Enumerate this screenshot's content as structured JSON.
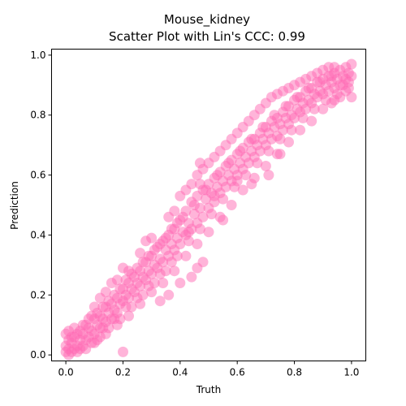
{
  "chart_data": {
    "type": "scatter",
    "title_line1": "Mouse_kidney",
    "title_line2": "Scatter Plot with Lin's CCC: 0.99",
    "xlabel": "Truth",
    "ylabel": "Prediction",
    "xlim": [
      -0.05,
      1.05
    ],
    "ylim": [
      -0.02,
      1.02
    ],
    "x_ticks": [
      0.0,
      0.2,
      0.4,
      0.6,
      0.8,
      1.0
    ],
    "x_tick_labels": [
      "0.0",
      "0.2",
      "0.4",
      "0.6",
      "0.8",
      "1.0"
    ],
    "y_ticks": [
      0.0,
      0.2,
      0.4,
      0.6,
      0.8,
      1.0
    ],
    "y_tick_labels": [
      "0.0",
      "0.2",
      "0.4",
      "0.6",
      "0.8",
      "1.0"
    ],
    "grid": false,
    "marker_color": "#FF69B4",
    "marker_alpha": 0.5,
    "series": [
      {
        "points": [
          [
            0.0,
            0.01
          ],
          [
            0.0,
            0.03
          ],
          [
            0.0,
            0.07
          ],
          [
            0.01,
            0.0
          ],
          [
            0.01,
            0.02
          ],
          [
            0.01,
            0.05
          ],
          [
            0.02,
            0.01
          ],
          [
            0.02,
            0.04
          ],
          [
            0.03,
            0.02
          ],
          [
            0.03,
            0.06
          ],
          [
            0.04,
            0.03
          ],
          [
            0.04,
            0.01
          ],
          [
            0.05,
            0.05
          ],
          [
            0.05,
            0.08
          ],
          [
            0.06,
            0.03
          ],
          [
            0.06,
            0.07
          ],
          [
            0.07,
            0.05
          ],
          [
            0.07,
            0.1
          ],
          [
            0.08,
            0.06
          ],
          [
            0.08,
            0.09
          ],
          [
            0.09,
            0.08
          ],
          [
            0.1,
            0.07
          ],
          [
            0.1,
            0.12
          ],
          [
            0.11,
            0.1
          ],
          [
            0.12,
            0.09
          ],
          [
            0.12,
            0.13
          ],
          [
            0.13,
            0.12
          ],
          [
            0.14,
            0.11
          ],
          [
            0.14,
            0.16
          ],
          [
            0.15,
            0.14
          ],
          [
            0.16,
            0.12
          ],
          [
            0.16,
            0.17
          ],
          [
            0.17,
            0.15
          ],
          [
            0.18,
            0.14
          ],
          [
            0.18,
            0.19
          ],
          [
            0.19,
            0.17
          ],
          [
            0.2,
            0.18
          ],
          [
            0.2,
            0.22
          ],
          [
            0.21,
            0.2
          ],
          [
            0.22,
            0.19
          ],
          [
            0.22,
            0.24
          ],
          [
            0.23,
            0.22
          ],
          [
            0.24,
            0.21
          ],
          [
            0.24,
            0.26
          ],
          [
            0.25,
            0.24
          ],
          [
            0.26,
            0.23
          ],
          [
            0.26,
            0.28
          ],
          [
            0.27,
            0.26
          ],
          [
            0.28,
            0.25
          ],
          [
            0.28,
            0.31
          ],
          [
            0.29,
            0.28
          ],
          [
            0.3,
            0.27
          ],
          [
            0.3,
            0.33
          ],
          [
            0.31,
            0.3
          ],
          [
            0.32,
            0.29
          ],
          [
            0.32,
            0.36
          ],
          [
            0.33,
            0.32
          ],
          [
            0.34,
            0.31
          ],
          [
            0.34,
            0.38
          ],
          [
            0.35,
            0.35
          ],
          [
            0.36,
            0.33
          ],
          [
            0.36,
            0.4
          ],
          [
            0.37,
            0.37
          ],
          [
            0.38,
            0.35
          ],
          [
            0.38,
            0.42
          ],
          [
            0.39,
            0.39
          ],
          [
            0.4,
            0.37
          ],
          [
            0.4,
            0.45
          ],
          [
            0.41,
            0.41
          ],
          [
            0.42,
            0.4
          ],
          [
            0.42,
            0.48
          ],
          [
            0.43,
            0.44
          ],
          [
            0.44,
            0.42
          ],
          [
            0.44,
            0.51
          ],
          [
            0.45,
            0.47
          ],
          [
            0.46,
            0.44
          ],
          [
            0.46,
            0.53
          ],
          [
            0.47,
            0.49
          ],
          [
            0.48,
            0.46
          ],
          [
            0.48,
            0.55
          ],
          [
            0.49,
            0.52
          ],
          [
            0.5,
            0.49
          ],
          [
            0.5,
            0.57
          ],
          [
            0.51,
            0.54
          ],
          [
            0.52,
            0.51
          ],
          [
            0.52,
            0.59
          ],
          [
            0.53,
            0.56
          ],
          [
            0.54,
            0.54
          ],
          [
            0.54,
            0.61
          ],
          [
            0.55,
            0.58
          ],
          [
            0.56,
            0.56
          ],
          [
            0.56,
            0.63
          ],
          [
            0.57,
            0.6
          ],
          [
            0.58,
            0.58
          ],
          [
            0.58,
            0.65
          ],
          [
            0.59,
            0.62
          ],
          [
            0.6,
            0.6
          ],
          [
            0.6,
            0.67
          ],
          [
            0.61,
            0.64
          ],
          [
            0.62,
            0.62
          ],
          [
            0.62,
            0.69
          ],
          [
            0.63,
            0.66
          ],
          [
            0.64,
            0.64
          ],
          [
            0.64,
            0.71
          ],
          [
            0.65,
            0.68
          ],
          [
            0.66,
            0.66
          ],
          [
            0.66,
            0.72
          ],
          [
            0.67,
            0.7
          ],
          [
            0.68,
            0.68
          ],
          [
            0.68,
            0.74
          ],
          [
            0.69,
            0.72
          ],
          [
            0.7,
            0.7
          ],
          [
            0.7,
            0.76
          ],
          [
            0.71,
            0.74
          ],
          [
            0.72,
            0.72
          ],
          [
            0.72,
            0.78
          ],
          [
            0.73,
            0.76
          ],
          [
            0.74,
            0.73
          ],
          [
            0.74,
            0.79
          ],
          [
            0.75,
            0.77
          ],
          [
            0.76,
            0.75
          ],
          [
            0.76,
            0.81
          ],
          [
            0.77,
            0.79
          ],
          [
            0.78,
            0.77
          ],
          [
            0.78,
            0.83
          ],
          [
            0.79,
            0.8
          ],
          [
            0.8,
            0.79
          ],
          [
            0.8,
            0.85
          ],
          [
            0.81,
            0.82
          ],
          [
            0.82,
            0.81
          ],
          [
            0.82,
            0.86
          ],
          [
            0.83,
            0.84
          ],
          [
            0.84,
            0.82
          ],
          [
            0.84,
            0.88
          ],
          [
            0.85,
            0.85
          ],
          [
            0.86,
            0.84
          ],
          [
            0.86,
            0.89
          ],
          [
            0.87,
            0.87
          ],
          [
            0.88,
            0.86
          ],
          [
            0.88,
            0.91
          ],
          [
            0.89,
            0.88
          ],
          [
            0.9,
            0.87
          ],
          [
            0.9,
            0.92
          ],
          [
            0.91,
            0.9
          ],
          [
            0.92,
            0.88
          ],
          [
            0.92,
            0.93
          ],
          [
            0.93,
            0.91
          ],
          [
            0.94,
            0.89
          ],
          [
            0.94,
            0.94
          ],
          [
            0.95,
            0.92
          ],
          [
            0.96,
            0.9
          ],
          [
            0.96,
            0.95
          ],
          [
            0.97,
            0.93
          ],
          [
            0.98,
            0.92
          ],
          [
            0.98,
            0.96
          ],
          [
            0.99,
            0.94
          ],
          [
            1.0,
            0.93
          ],
          [
            1.0,
            0.97
          ],
          [
            0.99,
            0.89
          ],
          [
            1.0,
            0.86
          ],
          [
            0.01,
            0.08
          ],
          [
            0.02,
            0.06
          ],
          [
            0.03,
            0.09
          ],
          [
            0.04,
            0.07
          ],
          [
            0.05,
            0.02
          ],
          [
            0.06,
            0.1
          ],
          [
            0.07,
            0.02
          ],
          [
            0.08,
            0.12
          ],
          [
            0.09,
            0.04
          ],
          [
            0.11,
            0.14
          ],
          [
            0.12,
            0.06
          ],
          [
            0.13,
            0.16
          ],
          [
            0.15,
            0.09
          ],
          [
            0.17,
            0.2
          ],
          [
            0.19,
            0.12
          ],
          [
            0.21,
            0.25
          ],
          [
            0.23,
            0.16
          ],
          [
            0.25,
            0.29
          ],
          [
            0.27,
            0.2
          ],
          [
            0.29,
            0.33
          ],
          [
            0.31,
            0.24
          ],
          [
            0.33,
            0.37
          ],
          [
            0.35,
            0.28
          ],
          [
            0.37,
            0.42
          ],
          [
            0.39,
            0.33
          ],
          [
            0.41,
            0.46
          ],
          [
            0.43,
            0.38
          ],
          [
            0.45,
            0.5
          ],
          [
            0.47,
            0.42
          ],
          [
            0.49,
            0.55
          ],
          [
            0.51,
            0.47
          ],
          [
            0.53,
            0.6
          ],
          [
            0.55,
            0.52
          ],
          [
            0.57,
            0.64
          ],
          [
            0.59,
            0.56
          ],
          [
            0.61,
            0.68
          ],
          [
            0.63,
            0.6
          ],
          [
            0.65,
            0.72
          ],
          [
            0.67,
            0.64
          ],
          [
            0.69,
            0.76
          ],
          [
            0.71,
            0.68
          ],
          [
            0.73,
            0.8
          ],
          [
            0.75,
            0.72
          ],
          [
            0.77,
            0.83
          ],
          [
            0.79,
            0.75
          ],
          [
            0.81,
            0.86
          ],
          [
            0.83,
            0.79
          ],
          [
            0.85,
            0.89
          ],
          [
            0.87,
            0.82
          ],
          [
            0.89,
            0.91
          ],
          [
            0.91,
            0.85
          ],
          [
            0.93,
            0.93
          ],
          [
            0.95,
            0.87
          ],
          [
            0.97,
            0.9
          ],
          [
            0.99,
            0.91
          ],
          [
            0.93,
            0.84
          ],
          [
            0.2,
            0.29
          ],
          [
            0.22,
            0.28
          ],
          [
            0.18,
            0.25
          ],
          [
            0.16,
            0.24
          ],
          [
            0.14,
            0.21
          ],
          [
            0.12,
            0.19
          ],
          [
            0.1,
            0.16
          ],
          [
            0.3,
            0.39
          ],
          [
            0.28,
            0.38
          ],
          [
            0.26,
            0.34
          ],
          [
            0.36,
            0.46
          ],
          [
            0.38,
            0.48
          ],
          [
            0.4,
            0.53
          ],
          [
            0.42,
            0.55
          ],
          [
            0.44,
            0.57
          ],
          [
            0.46,
            0.6
          ],
          [
            0.48,
            0.62
          ],
          [
            0.5,
            0.64
          ],
          [
            0.52,
            0.66
          ],
          [
            0.54,
            0.68
          ],
          [
            0.56,
            0.7
          ],
          [
            0.58,
            0.72
          ],
          [
            0.6,
            0.74
          ],
          [
            0.62,
            0.76
          ],
          [
            0.64,
            0.78
          ],
          [
            0.66,
            0.8
          ],
          [
            0.68,
            0.82
          ],
          [
            0.7,
            0.84
          ],
          [
            0.72,
            0.86
          ],
          [
            0.74,
            0.87
          ],
          [
            0.76,
            0.88
          ],
          [
            0.78,
            0.89
          ],
          [
            0.8,
            0.9
          ],
          [
            0.82,
            0.91
          ],
          [
            0.84,
            0.92
          ],
          [
            0.86,
            0.93
          ],
          [
            0.88,
            0.94
          ],
          [
            0.9,
            0.95
          ],
          [
            0.92,
            0.96
          ],
          [
            0.94,
            0.96
          ],
          [
            0.1,
            0.04
          ],
          [
            0.14,
            0.07
          ],
          [
            0.18,
            0.1
          ],
          [
            0.22,
            0.13
          ],
          [
            0.26,
            0.17
          ],
          [
            0.3,
            0.21
          ],
          [
            0.34,
            0.24
          ],
          [
            0.38,
            0.28
          ],
          [
            0.42,
            0.33
          ],
          [
            0.46,
            0.37
          ],
          [
            0.5,
            0.41
          ],
          [
            0.54,
            0.46
          ],
          [
            0.58,
            0.5
          ],
          [
            0.62,
            0.55
          ],
          [
            0.66,
            0.59
          ],
          [
            0.7,
            0.63
          ],
          [
            0.74,
            0.67
          ],
          [
            0.78,
            0.71
          ],
          [
            0.82,
            0.75
          ],
          [
            0.86,
            0.78
          ],
          [
            0.9,
            0.82
          ],
          [
            0.94,
            0.85
          ],
          [
            0.98,
            0.88
          ],
          [
            0.96,
            0.86
          ],
          [
            0.2,
            0.01
          ],
          [
            0.47,
            0.64
          ],
          [
            0.52,
            0.53
          ],
          [
            0.55,
            0.45
          ],
          [
            0.6,
            0.58
          ],
          [
            0.65,
            0.57
          ],
          [
            0.71,
            0.6
          ],
          [
            0.75,
            0.67
          ],
          [
            0.44,
            0.26
          ],
          [
            0.46,
            0.29
          ],
          [
            0.48,
            0.31
          ],
          [
            0.4,
            0.24
          ],
          [
            0.36,
            0.2
          ],
          [
            0.33,
            0.18
          ],
          [
            0.47,
            0.57
          ],
          [
            0.43,
            0.41
          ],
          [
            0.09,
            0.13
          ],
          [
            0.11,
            0.05
          ],
          [
            0.13,
            0.09
          ],
          [
            0.15,
            0.18
          ],
          [
            0.17,
            0.12
          ],
          [
            0.19,
            0.22
          ],
          [
            0.21,
            0.16
          ],
          [
            0.23,
            0.27
          ],
          [
            0.25,
            0.19
          ],
          [
            0.27,
            0.31
          ],
          [
            0.29,
            0.23
          ],
          [
            0.31,
            0.35
          ],
          [
            0.33,
            0.27
          ],
          [
            0.35,
            0.39
          ],
          [
            0.37,
            0.31
          ],
          [
            0.39,
            0.44
          ]
        ]
      }
    ]
  }
}
